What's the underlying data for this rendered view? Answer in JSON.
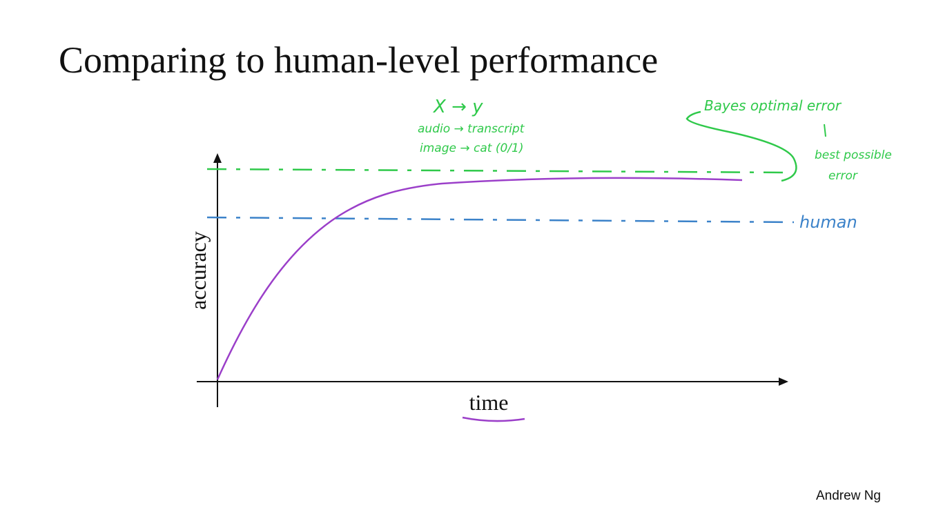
{
  "title": "Comparing to human-level performance",
  "plot": {
    "y_axis_label": "accuracy",
    "x_axis_label": "time"
  },
  "annotations": {
    "examples": [
      "X → y",
      "audio → transcript",
      "image → cat (0/1)"
    ],
    "bayes": "Bayes optimal error",
    "best_possible": [
      "best possible",
      "error"
    ],
    "human": "human"
  },
  "footer": "Andrew Ng"
}
